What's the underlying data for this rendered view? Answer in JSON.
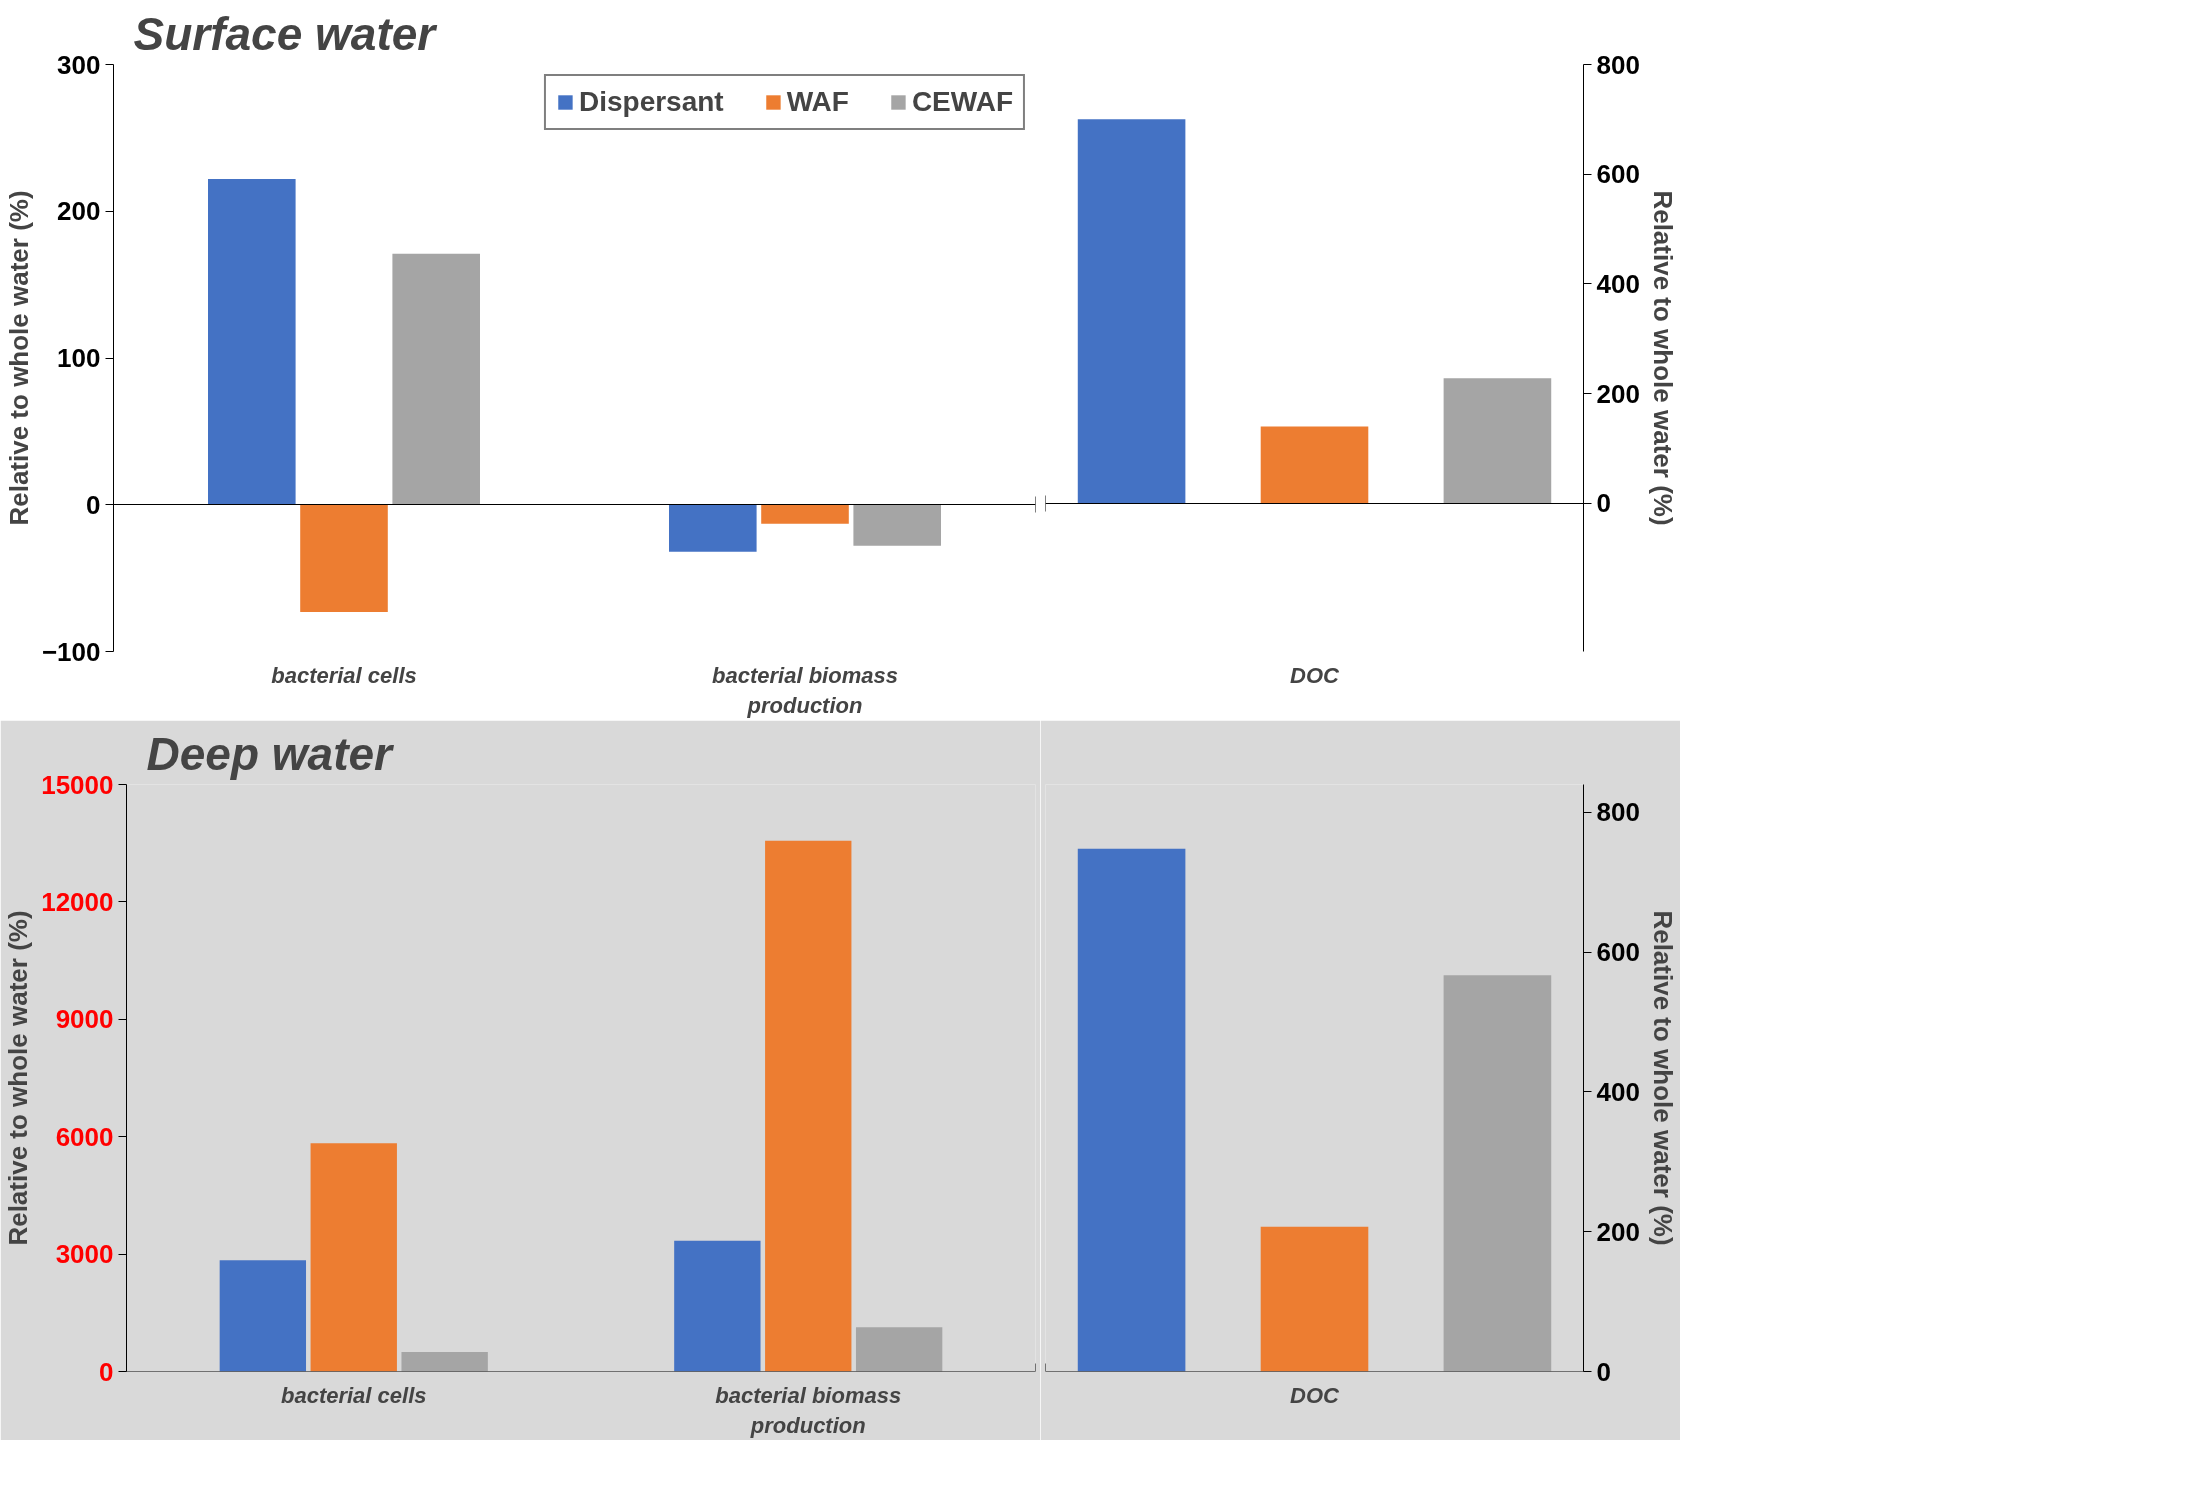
{
  "chart_data": [
    {
      "type": "bar",
      "title": "Surface water",
      "ylabel": "Relative to whole water (%)",
      "categories": [
        "bacterial cells",
        "bacterial biomass production"
      ],
      "ylim": [
        -100,
        300
      ],
      "yticks": [
        -100,
        0,
        100,
        200,
        300
      ],
      "legend": "top",
      "series": [
        {
          "name": "Dispersant",
          "color": "#4472c4",
          "values": [
            222,
            -32
          ]
        },
        {
          "name": "WAF",
          "color": "#ed7d31",
          "values": [
            -73,
            -13
          ]
        },
        {
          "name": "CEWAF",
          "color": "#a5a5a5",
          "values": [
            171,
            -28
          ]
        }
      ]
    },
    {
      "type": "bar",
      "ylabel": "Relative to whole water (%)",
      "categories": [
        "DOC"
      ],
      "ylim": [
        -270,
        800
      ],
      "yticks": [
        0,
        200,
        400,
        600,
        800
      ],
      "series": [
        {
          "color": "#4472c4",
          "values": [
            700
          ]
        },
        {
          "color": "#ed7d31",
          "values": [
            140
          ]
        },
        {
          "color": "#a5a5a5",
          "values": [
            228
          ]
        }
      ]
    },
    {
      "type": "bar",
      "title": "Deep water",
      "ylabel": "Relative to whole water (%)",
      "categories": [
        "bacterial cells",
        "bacterial biomass production"
      ],
      "ylim": [
        0,
        15000
      ],
      "yticks": [
        0,
        3000,
        6000,
        9000,
        12000,
        15000
      ],
      "series": [
        {
          "color": "#4472c4",
          "values": [
            2840,
            3340
          ]
        },
        {
          "color": "#ed7d31",
          "values": [
            5830,
            13560
          ]
        },
        {
          "color": "#a5a5a5",
          "values": [
            500,
            1130
          ]
        }
      ]
    },
    {
      "type": "bar",
      "ylabel": "Relative to whole water (%)",
      "categories": [
        "DOC"
      ],
      "ylim": [
        0,
        840
      ],
      "yticks": [
        0,
        200,
        400,
        600,
        800
      ],
      "series": [
        {
          "color": "#4472c4",
          "values": [
            748
          ]
        },
        {
          "color": "#ed7d31",
          "values": [
            207
          ]
        },
        {
          "color": "#a5a5a5",
          "values": [
            567
          ]
        }
      ]
    }
  ]
}
